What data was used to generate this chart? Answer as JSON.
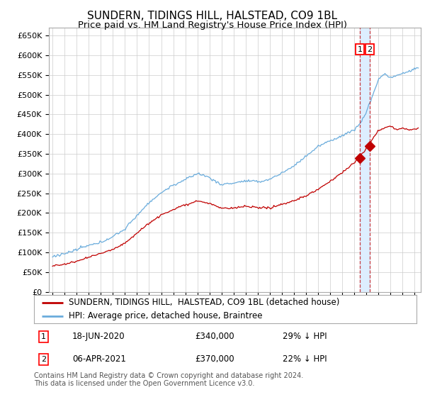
{
  "title": "SUNDERN, TIDINGS HILL, HALSTEAD, CO9 1BL",
  "subtitle": "Price paid vs. HM Land Registry's House Price Index (HPI)",
  "ylim": [
    0,
    670000
  ],
  "yticks": [
    0,
    50000,
    100000,
    150000,
    200000,
    250000,
    300000,
    350000,
    400000,
    450000,
    500000,
    550000,
    600000,
    650000
  ],
  "ytick_labels": [
    "£0",
    "£50K",
    "£100K",
    "£150K",
    "£200K",
    "£250K",
    "£300K",
    "£350K",
    "£400K",
    "£450K",
    "£500K",
    "£550K",
    "£600K",
    "£650K"
  ],
  "hpi_color": "#6aacdc",
  "price_color": "#c00000",
  "span_color": "#ddeeff",
  "marker1_year": 2020.46,
  "marker2_year": 2021.26,
  "marker1_price": 340000,
  "marker2_price": 370000,
  "legend_line1": "SUNDERN, TIDINGS HILL,  HALSTEAD, CO9 1BL (detached house)",
  "legend_line2": "HPI: Average price, detached house, Braintree",
  "footnote": "Contains HM Land Registry data © Crown copyright and database right 2024.\nThis data is licensed under the Open Government Licence v3.0.",
  "background_color": "#ffffff",
  "grid_color": "#cccccc",
  "title_fontsize": 11,
  "subtitle_fontsize": 9.5
}
